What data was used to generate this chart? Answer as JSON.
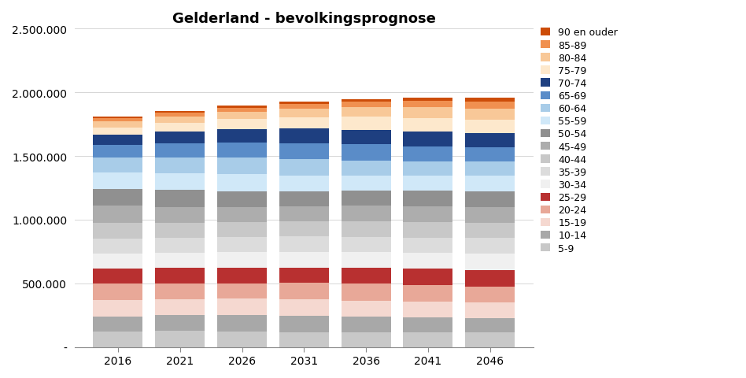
{
  "title": "Gelderland - bevolkingsprognose",
  "years": [
    2016,
    2021,
    2026,
    2031,
    2036,
    2041,
    2046
  ],
  "age_groups": [
    "5-9",
    "10-14",
    "15-19",
    "20-24",
    "25-29",
    "30-34",
    "35-39",
    "40-44",
    "45-49",
    "50-54",
    "55-59",
    "60-64",
    "65-69",
    "70-74",
    "75-79",
    "80-84",
    "85-89",
    "90 en ouder"
  ],
  "colors": [
    "#c8c8c8",
    "#a8a8a8",
    "#f5d8d0",
    "#e8a898",
    "#b83030",
    "#f0f0f0",
    "#dcdcdc",
    "#c8c8c8",
    "#adadad",
    "#909090",
    "#d0e8f8",
    "#a8cce8",
    "#5a8cc8",
    "#1e3f80",
    "#fde8cc",
    "#f8c898",
    "#f09050",
    "#cc4c08"
  ],
  "data": {
    "5-9": [
      120000,
      125000,
      122000,
      118000,
      116000,
      114000,
      113000
    ],
    "10-14": [
      120000,
      125000,
      128000,
      125000,
      121000,
      118000,
      116000
    ],
    "15-19": [
      128000,
      122000,
      128000,
      132000,
      128000,
      124000,
      121000
    ],
    "20-24": [
      128000,
      126000,
      122000,
      128000,
      133000,
      129000,
      125000
    ],
    "25-29": [
      120000,
      123000,
      124000,
      120000,
      126000,
      131000,
      127000
    ],
    "30-34": [
      116000,
      118000,
      122000,
      122000,
      119000,
      124000,
      129000
    ],
    "35-39": [
      116000,
      116000,
      118000,
      122000,
      122000,
      119000,
      124000
    ],
    "40-44": [
      126000,
      117000,
      117000,
      119000,
      123000,
      123000,
      120000
    ],
    "45-49": [
      136000,
      127000,
      118000,
      118000,
      121000,
      125000,
      125000
    ],
    "50-54": [
      133000,
      135000,
      126000,
      118000,
      118000,
      121000,
      125000
    ],
    "55-59": [
      128000,
      131000,
      134000,
      125000,
      117000,
      117000,
      120000
    ],
    "60-64": [
      116000,
      125000,
      128000,
      131000,
      122000,
      114000,
      114000
    ],
    "65-69": [
      98000,
      111000,
      120000,
      123000,
      126000,
      117000,
      110000
    ],
    "70-74": [
      80000,
      91000,
      103000,
      113000,
      115000,
      119000,
      110000
    ],
    "75-79": [
      60000,
      70000,
      80000,
      91000,
      101000,
      103000,
      107000
    ],
    "80-84": [
      46000,
      49000,
      57000,
      65000,
      75000,
      84000,
      85000
    ],
    "85-89": [
      27000,
      30000,
      32000,
      37000,
      43000,
      50000,
      57000
    ],
    "90 en ouder": [
      12000,
      13000,
      15000,
      17000,
      20000,
      24000,
      30000
    ]
  },
  "ylim": [
    0,
    2500000
  ],
  "yticks": [
    0,
    500000,
    1000000,
    1500000,
    2000000,
    2500000
  ],
  "ytick_labels": [
    "-",
    "500.000",
    "1.000.000",
    "1.500.000",
    "2.000.000",
    "2.500.000"
  ],
  "background_color": "#ffffff",
  "plot_bg_color": "#ffffff",
  "bar_width": 4.0,
  "legend_fontsize": 9,
  "title_fontsize": 13
}
